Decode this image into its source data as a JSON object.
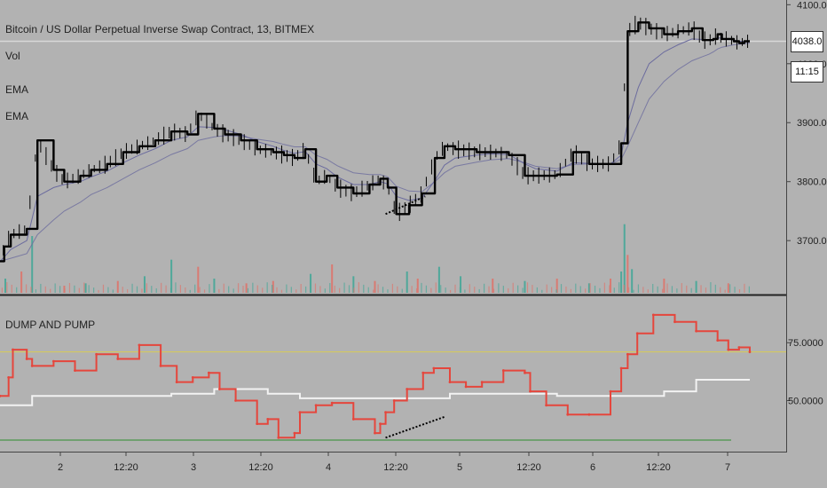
{
  "legend": {
    "symbol": "Bitcoin / US Dollar Perpetual Inverse Swap Contract, 13, BITMEX",
    "vol": "Vol",
    "ema1": "EMA",
    "ema2": "EMA",
    "indicator": "DUMP AND PUMP"
  },
  "price_tag": "4038.0",
  "time_tag": "11:15",
  "colors": {
    "background": "#b2b2b2",
    "candle": "#000000",
    "ema": "#6b6b9e",
    "vol_up": "#4fa89a",
    "vol_down": "#d97a72",
    "dp_line": "#e5463c",
    "dp_signal": "#f2f2f2",
    "level_top": "#d8cc55",
    "level_bottom": "#5a9a5a",
    "trend": "#000000"
  },
  "chart_data": [
    {
      "type": "line",
      "name": "price",
      "y_ticks": [
        "4100.0",
        "4000.0",
        "3900.0",
        "3800.0",
        "3700.0"
      ],
      "ylim": [
        3610,
        4108
      ],
      "last_price": 4038.0,
      "x": [
        0,
        0.04,
        0.1,
        0.25,
        0.35,
        0.5,
        0.6,
        0.75,
        0.85,
        1.0,
        1.15,
        1.3,
        1.45,
        1.6,
        1.75,
        1.85,
        2.0,
        2.1,
        2.25,
        2.4,
        2.55,
        2.65,
        2.75,
        2.85,
        2.95,
        3.05,
        3.15,
        3.3,
        3.45,
        3.55,
        3.62,
        3.7,
        3.82,
        3.94,
        4.06,
        4.15,
        4.25,
        4.45,
        4.58,
        4.75,
        4.9,
        5.0,
        5.2,
        5.35,
        5.5,
        5.7,
        5.8,
        5.86,
        5.96,
        6.06,
        6.2,
        6.33,
        6.46,
        6.56,
        6.62,
        6.66,
        6.7,
        6.74,
        6.8,
        6.85,
        6.9,
        6.95,
        7.0
      ],
      "close": [
        3665,
        3690,
        3710,
        3720,
        3870,
        3820,
        3800,
        3810,
        3820,
        3830,
        3850,
        3860,
        3870,
        3885,
        3880,
        3915,
        3890,
        3880,
        3870,
        3855,
        3850,
        3845,
        3840,
        3855,
        3800,
        3810,
        3790,
        3780,
        3795,
        3805,
        3790,
        3745,
        3760,
        3780,
        3840,
        3860,
        3855,
        3850,
        3850,
        3845,
        3810,
        3810,
        3812,
        3850,
        3830,
        3830,
        3865,
        4055,
        4070,
        4060,
        4050,
        4055,
        4060,
        4040,
        4040,
        4042,
        4050,
        4042,
        4042,
        4038,
        4035,
        4038,
        4038
      ],
      "ema_fast": [
        3665,
        3672,
        3685,
        3700,
        3775,
        3790,
        3795,
        3800,
        3808,
        3818,
        3832,
        3845,
        3856,
        3870,
        3876,
        3893,
        3892,
        3888,
        3880,
        3868,
        3860,
        3853,
        3848,
        3851,
        3830,
        3822,
        3808,
        3795,
        3795,
        3800,
        3796,
        3775,
        3768,
        3772,
        3802,
        3828,
        3840,
        3845,
        3847,
        3846,
        3830,
        3822,
        3818,
        3832,
        3831,
        3830,
        3845,
        3900,
        3960,
        4000,
        4020,
        4032,
        4042,
        4041,
        4040,
        4041,
        4044,
        4043,
        4042,
        4040,
        4038,
        4038,
        4038
      ],
      "ema_slow": [
        3665,
        3667,
        3670,
        3678,
        3710,
        3735,
        3750,
        3765,
        3778,
        3790,
        3805,
        3820,
        3832,
        3846,
        3856,
        3870,
        3876,
        3878,
        3877,
        3872,
        3868,
        3863,
        3859,
        3859,
        3845,
        3838,
        3827,
        3815,
        3812,
        3812,
        3808,
        3792,
        3784,
        3783,
        3800,
        3815,
        3826,
        3833,
        3837,
        3839,
        3832,
        3826,
        3822,
        3829,
        3830,
        3830,
        3838,
        3860,
        3900,
        3940,
        3970,
        3990,
        4005,
        4012,
        4016,
        4020,
        4025,
        4028,
        4030,
        4032,
        4033,
        4034,
        4035
      ]
    },
    {
      "type": "bar",
      "name": "volume",
      "x": [
        0.05,
        0.2,
        0.3,
        0.6,
        0.8,
        1.1,
        1.35,
        1.6,
        1.85,
        2.0,
        2.3,
        2.55,
        2.9,
        3.1,
        3.3,
        3.5,
        3.8,
        3.9,
        4.1,
        4.3,
        4.6,
        4.9,
        5.2,
        5.5,
        5.7,
        5.8,
        5.83,
        5.86,
        5.9,
        6.2,
        6.5,
        6.8
      ],
      "values": [
        30,
        45,
        120,
        15,
        20,
        25,
        35,
        70,
        55,
        30,
        20,
        25,
        40,
        60,
        35,
        25,
        45,
        30,
        55,
        35,
        30,
        25,
        30,
        20,
        30,
        45,
        145,
        80,
        50,
        30,
        25,
        20
      ],
      "up": [
        true,
        false,
        true,
        false,
        true,
        false,
        true,
        true,
        false,
        true,
        false,
        false,
        true,
        false,
        true,
        false,
        true,
        false,
        true,
        true,
        false,
        true,
        false,
        true,
        false,
        true,
        true,
        false,
        true,
        false,
        true,
        false
      ]
    },
    {
      "type": "line",
      "name": "dump-and-pump",
      "y_ticks": [
        "75.0000",
        "50.0000"
      ],
      "ylim": [
        28,
        95
      ],
      "levels": [
        71,
        33
      ],
      "x_ticks": [
        "2",
        "12:20",
        "3",
        "12:20",
        "4",
        "12:20",
        "5",
        "12:20",
        "6",
        "12:20",
        "7"
      ],
      "x": [
        0,
        0.08,
        0.12,
        0.25,
        0.3,
        0.5,
        0.7,
        0.9,
        1.1,
        1.3,
        1.5,
        1.65,
        1.8,
        1.95,
        2.05,
        2.2,
        2.4,
        2.5,
        2.6,
        2.75,
        2.8,
        2.95,
        3.1,
        3.3,
        3.5,
        3.55,
        3.6,
        3.68,
        3.8,
        3.95,
        4.05,
        4.2,
        4.35,
        4.5,
        4.7,
        4.9,
        4.95,
        5.1,
        5.3,
        5.5,
        5.7,
        5.8,
        5.86,
        5.95,
        6.1,
        6.3,
        6.5,
        6.7,
        6.8,
        6.9,
        7.0
      ],
      "values": [
        52,
        60,
        72,
        68,
        65,
        67,
        63,
        70,
        68,
        74,
        65,
        58,
        60,
        62,
        55,
        50,
        40,
        42,
        34,
        36,
        45,
        48,
        49,
        42,
        36,
        40,
        45,
        50,
        55,
        62,
        64,
        58,
        56,
        58,
        63,
        62,
        54,
        48,
        44,
        44,
        54,
        64,
        70,
        79,
        87,
        84,
        80,
        76,
        72,
        73,
        71
      ],
      "signal_x": [
        0,
        0.3,
        0.7,
        1.2,
        1.6,
        2.0,
        2.2,
        2.5,
        2.8,
        3.2,
        3.7,
        4.2,
        4.8,
        5.2,
        5.8,
        6.2,
        6.5,
        7.0
      ],
      "signal": [
        48,
        52,
        52,
        52,
        53,
        55,
        55,
        53,
        51,
        51,
        51,
        53,
        53,
        52,
        52,
        54,
        59,
        59
      ]
    }
  ]
}
